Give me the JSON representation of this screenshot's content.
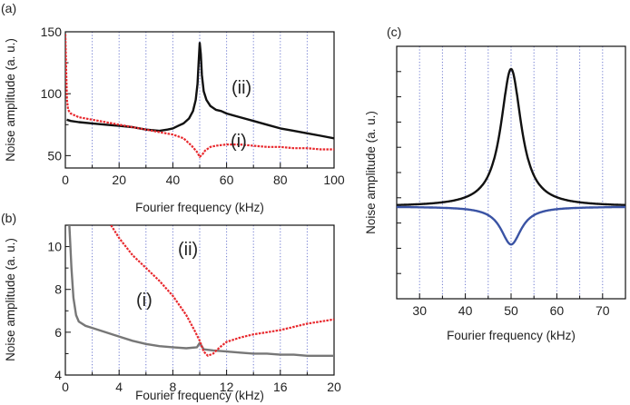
{
  "chart_data": [
    {
      "panel": "(a)",
      "type": "line",
      "xlabel": "Fourier frequency (kHz)",
      "ylabel": "Noise amplitude (a. u.)",
      "xlim": [
        0,
        100
      ],
      "ylim": [
        40,
        150
      ],
      "xticks": [
        0,
        20,
        40,
        60,
        80,
        100
      ],
      "yticks": [
        50,
        100,
        150
      ],
      "grid": "vertical dotted every 10 kHz",
      "series": [
        {
          "name": "(ii)",
          "color": "#111111",
          "points": [
            [
              0.5,
              79
            ],
            [
              2,
              78
            ],
            [
              5,
              77
            ],
            [
              10,
              76
            ],
            [
              15,
              75
            ],
            [
              20,
              74
            ],
            [
              25,
              73
            ],
            [
              30,
              71
            ],
            [
              35,
              70
            ],
            [
              38,
              71
            ],
            [
              40,
              72
            ],
            [
              42,
              74
            ],
            [
              44,
              76
            ],
            [
              46,
              80
            ],
            [
              47.5,
              86
            ],
            [
              48.5,
              95
            ],
            [
              49.2,
              108
            ],
            [
              49.6,
              125
            ],
            [
              50,
              141
            ],
            [
              50.4,
              132
            ],
            [
              50.8,
              115
            ],
            [
              51.5,
              102
            ],
            [
              52.5,
              95
            ],
            [
              54,
              90
            ],
            [
              56,
              87
            ],
            [
              58,
              86
            ],
            [
              60,
              84
            ],
            [
              65,
              81
            ],
            [
              70,
              78
            ],
            [
              75,
              75
            ],
            [
              80,
              72
            ],
            [
              85,
              70
            ],
            [
              90,
              68
            ],
            [
              95,
              66
            ],
            [
              100,
              64
            ]
          ]
        },
        {
          "name": "(i)",
          "color": "#e8282d",
          "points": [
            [
              0,
              148
            ],
            [
              0.3,
              120
            ],
            [
              0.6,
              95
            ],
            [
              1,
              87
            ],
            [
              2,
              84
            ],
            [
              5,
              81
            ],
            [
              10,
              79
            ],
            [
              15,
              77
            ],
            [
              20,
              75
            ],
            [
              25,
              73
            ],
            [
              30,
              71
            ],
            [
              35,
              69
            ],
            [
              40,
              67
            ],
            [
              44,
              64
            ],
            [
              47,
              58
            ],
            [
              49,
              53
            ],
            [
              50,
              49
            ],
            [
              51,
              51
            ],
            [
              52,
              54
            ],
            [
              54,
              57
            ],
            [
              56,
              58
            ],
            [
              60,
              59
            ],
            [
              65,
              59
            ],
            [
              70,
              58
            ],
            [
              75,
              57
            ],
            [
              80,
              57
            ],
            [
              85,
              56
            ],
            [
              90,
              56
            ],
            [
              95,
              55
            ],
            [
              100,
              55
            ]
          ]
        }
      ],
      "annotations": [
        "(ii)",
        "(i)"
      ]
    },
    {
      "panel": "(b)",
      "type": "line",
      "xlabel": "Fourier frequency (kHz)",
      "ylabel": "Noise amplitude (a. u.)",
      "xlim": [
        0,
        20
      ],
      "ylim": [
        4,
        11
      ],
      "xticks": [
        0,
        4,
        8,
        12,
        16,
        20
      ],
      "yticks": [
        4,
        6,
        8,
        10
      ],
      "grid": "vertical dotted every 2 kHz",
      "series": [
        {
          "name": "(i)",
          "color": "#777777",
          "points": [
            [
              0.3,
              11
            ],
            [
              0.45,
              9
            ],
            [
              0.6,
              7.6
            ],
            [
              0.8,
              6.8
            ],
            [
              1,
              6.5
            ],
            [
              1.5,
              6.3
            ],
            [
              2,
              6.2
            ],
            [
              3,
              6
            ],
            [
              4,
              5.8
            ],
            [
              5,
              5.6
            ],
            [
              6,
              5.45
            ],
            [
              7,
              5.35
            ],
            [
              8,
              5.3
            ],
            [
              9,
              5.25
            ],
            [
              9.8,
              5.3
            ],
            [
              10,
              5.5
            ],
            [
              10.3,
              5.2
            ],
            [
              11,
              5.15
            ],
            [
              12,
              5.1
            ],
            [
              13,
              5.05
            ],
            [
              14,
              5
            ],
            [
              15,
              5
            ],
            [
              16,
              4.95
            ],
            [
              17,
              4.95
            ],
            [
              18,
              4.9
            ],
            [
              19,
              4.9
            ],
            [
              20,
              4.9
            ]
          ]
        },
        {
          "name": "(ii)",
          "color": "#e8282d",
          "points": [
            [
              3.4,
              11
            ],
            [
              4,
              10.4
            ],
            [
              5,
              9.6
            ],
            [
              6,
              9
            ],
            [
              7,
              8.4
            ],
            [
              8,
              7.7
            ],
            [
              9,
              6.8
            ],
            [
              9.6,
              6.1
            ],
            [
              10,
              5.6
            ],
            [
              10.3,
              5.1
            ],
            [
              10.6,
              4.9
            ],
            [
              11,
              5
            ],
            [
              11.5,
              5.3
            ],
            [
              12,
              5.55
            ],
            [
              13,
              5.75
            ],
            [
              14,
              5.9
            ],
            [
              15,
              6
            ],
            [
              16,
              6.1
            ],
            [
              17,
              6.25
            ],
            [
              18,
              6.4
            ],
            [
              19,
              6.5
            ],
            [
              20,
              6.6
            ]
          ]
        }
      ],
      "annotations": [
        "(ii)",
        "(i)"
      ]
    },
    {
      "panel": "(c)",
      "type": "line",
      "xlabel": "Fourier frequency (kHz)",
      "ylabel": "Noise amplitude (a. u.)",
      "xlim": [
        25,
        75
      ],
      "ylim": [
        0,
        1
      ],
      "xticks": [
        30,
        40,
        50,
        60,
        70
      ],
      "grid": "vertical dotted every 5 kHz",
      "lorentzian_center_khz": 50,
      "series": [
        {
          "name": "peak",
          "color": "#111111",
          "baseline": 0.365,
          "amplitude": 0.545,
          "half_width_khz": 2.7
        },
        {
          "name": "dip",
          "color": "#3a53a4",
          "baseline": 0.365,
          "amplitude": -0.15,
          "half_width_khz": 2.7
        }
      ]
    }
  ]
}
